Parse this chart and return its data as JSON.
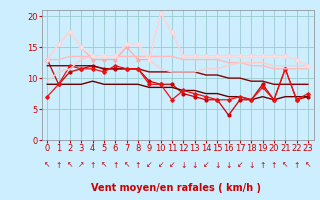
{
  "background_color": "#cceeff",
  "grid_color": "#99cccc",
  "xlabel": "Vent moyen/en rafales ( km/h )",
  "xlabel_color": "#cc0000",
  "xlabel_fontsize": 7,
  "tick_color": "#cc0000",
  "tick_fontsize": 6,
  "ylim": [
    0,
    21
  ],
  "xlim": [
    -0.5,
    23.5
  ],
  "yticks": [
    0,
    5,
    10,
    15,
    20
  ],
  "xticks": [
    0,
    1,
    2,
    3,
    4,
    5,
    6,
    7,
    8,
    9,
    10,
    11,
    12,
    13,
    14,
    15,
    16,
    17,
    18,
    19,
    20,
    21,
    22,
    23
  ],
  "series": [
    {
      "y": [
        13.0,
        9.0,
        11.0,
        11.5,
        12.0,
        11.5,
        11.5,
        11.5,
        11.5,
        9.5,
        9.0,
        9.0,
        7.5,
        7.0,
        6.5,
        6.5,
        4.0,
        6.5,
        6.5,
        9.0,
        6.5,
        11.5,
        6.5,
        7.0
      ],
      "color": "#cc0000",
      "linewidth": 0.9,
      "marker": "o",
      "markersize": 2.0,
      "linestyle": "-"
    },
    {
      "y": [
        12.0,
        12.0,
        12.0,
        12.0,
        12.0,
        11.5,
        11.5,
        11.5,
        11.5,
        11.0,
        11.0,
        11.0,
        11.0,
        11.0,
        10.5,
        10.5,
        10.0,
        10.0,
        9.5,
        9.5,
        9.0,
        9.0,
        9.0,
        9.0
      ],
      "color": "#880000",
      "linewidth": 1.0,
      "marker": null,
      "markersize": 0,
      "linestyle": "-"
    },
    {
      "y": [
        9.0,
        9.0,
        9.0,
        9.0,
        9.5,
        9.0,
        9.0,
        9.0,
        9.0,
        8.5,
        8.5,
        8.5,
        8.0,
        8.0,
        7.5,
        7.5,
        7.0,
        7.0,
        6.5,
        7.0,
        6.5,
        7.0,
        7.0,
        7.0
      ],
      "color": "#660000",
      "linewidth": 1.0,
      "marker": null,
      "markersize": 0,
      "linestyle": "-"
    },
    {
      "y": [
        7.0,
        9.0,
        12.0,
        11.5,
        11.5,
        11.0,
        12.0,
        11.5,
        11.5,
        9.0,
        9.0,
        6.5,
        8.0,
        7.5,
        7.0,
        6.5,
        6.5,
        7.0,
        6.5,
        8.5,
        6.5,
        11.5,
        6.5,
        7.5
      ],
      "color": "#ee1111",
      "linewidth": 0.9,
      "marker": "D",
      "markersize": 1.8,
      "linestyle": "-"
    },
    {
      "y": [
        13.0,
        15.5,
        17.5,
        15.0,
        13.0,
        13.0,
        13.0,
        15.0,
        13.0,
        13.0,
        20.5,
        17.5,
        13.5,
        13.5,
        13.5,
        13.5,
        13.5,
        13.5,
        13.5,
        13.5,
        13.5,
        13.5,
        13.0,
        12.0
      ],
      "color": "#ffaaaa",
      "linewidth": 0.9,
      "marker": "o",
      "markersize": 2.0,
      "linestyle": "-"
    },
    {
      "y": [
        13.0,
        13.0,
        13.5,
        13.5,
        13.5,
        13.5,
        13.5,
        13.5,
        13.5,
        13.5,
        13.5,
        13.5,
        13.0,
        13.0,
        13.0,
        13.0,
        12.5,
        12.5,
        12.0,
        12.0,
        11.5,
        11.5,
        11.5,
        11.5
      ],
      "color": "#ffbbbb",
      "linewidth": 1.0,
      "marker": null,
      "markersize": 0,
      "linestyle": "-"
    },
    {
      "y": [
        9.5,
        11.0,
        11.5,
        13.0,
        13.5,
        13.5,
        13.5,
        15.5,
        15.5,
        13.0,
        11.5,
        11.0,
        11.0,
        11.0,
        11.5,
        11.5,
        12.0,
        12.5,
        12.5,
        12.5,
        12.0,
        12.0,
        12.0,
        12.0
      ],
      "color": "#ffcccc",
      "linewidth": 1.0,
      "marker": null,
      "markersize": 0,
      "linestyle": "-"
    },
    {
      "y": [
        13.0,
        15.5,
        17.5,
        15.0,
        13.5,
        13.5,
        13.5,
        15.5,
        15.5,
        13.0,
        20.5,
        17.5,
        13.5,
        13.5,
        13.5,
        13.5,
        13.5,
        13.5,
        13.5,
        13.5,
        13.5,
        13.5,
        13.0,
        12.0
      ],
      "color": "#ffdddd",
      "linewidth": 0.9,
      "marker": "D",
      "markersize": 1.8,
      "linestyle": "-"
    }
  ],
  "wind_symbols": [
    "↖",
    "↑",
    "↖",
    "↗",
    "↑",
    "↖",
    "↑",
    "↖",
    "↑",
    "↙",
    "↙",
    "↙",
    "↓",
    "↓",
    "↙",
    "↓",
    "↓",
    "↙",
    "↓",
    "↑",
    "↑",
    "↖",
    "↑",
    "↖"
  ]
}
